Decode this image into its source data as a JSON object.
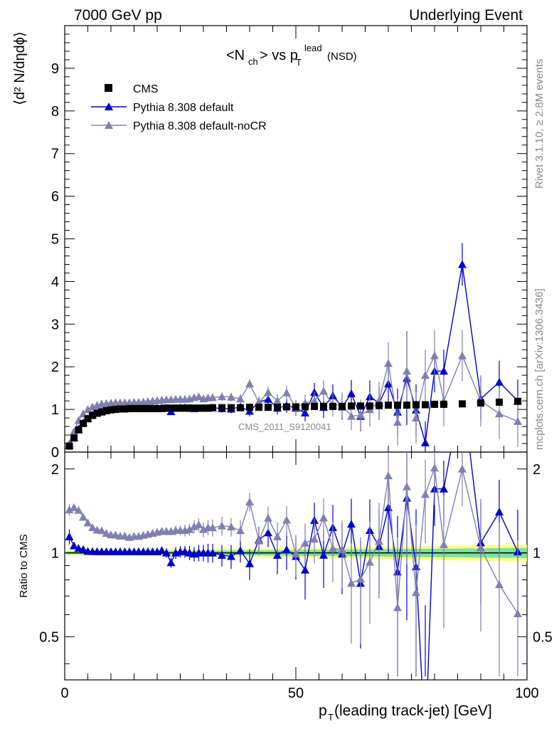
{
  "header": {
    "left": "7000 GeV pp",
    "right": "Underlying Event"
  },
  "plot_title": {
    "main": "<N",
    "sub_ch": "ch",
    "mid": "> vs p",
    "sub_T": "T",
    "sup_lead": "lead",
    "tail": "(NSD)"
  },
  "side_text": {
    "rivet": "Rivet 3.1.10, ≥ 2.8M events",
    "mcplots": "mcplots.cern.ch [arXiv:1306.3436]"
  },
  "watermark": "CMS_2011_S9120041",
  "axes": {
    "y_main_label": "⟨d² N/dηdϕ⟩",
    "y_ratio_label": "Ratio to CMS",
    "x_label_p": "p",
    "x_label_sub": "T",
    "x_label_rest": " (leading track-jet) [GeV]"
  },
  "legend": [
    {
      "label": "CMS",
      "color": "#000000",
      "marker": "square"
    },
    {
      "label": "Pythia 8.308 default",
      "color": "#0000cc",
      "marker": "triangle"
    },
    {
      "label": "Pythia 8.308 default-noCR",
      "color": "#8080b0",
      "marker": "triangle"
    }
  ],
  "chart_data": {
    "type": "scatter",
    "xlim": [
      0,
      100
    ],
    "main_ylim": [
      0,
      10
    ],
    "ratio_ylim": [
      0.35,
      2.3
    ],
    "x_ticks": [
      "0",
      "50",
      "100"
    ],
    "main_y_ticks": [
      "0",
      "1",
      "2",
      "3",
      "4",
      "5",
      "6",
      "7",
      "8",
      "9"
    ],
    "ratio_y_ticks": [
      "0.5",
      "1",
      "2"
    ],
    "x": [
      1,
      2,
      3,
      4,
      5,
      6,
      7,
      8,
      9,
      10,
      11,
      12,
      13,
      14,
      15,
      16,
      17,
      18,
      19,
      20,
      21,
      22,
      23,
      24,
      25,
      26,
      27,
      28,
      29,
      30,
      31,
      32,
      34,
      36,
      38,
      40,
      42,
      44,
      46,
      48,
      50,
      52,
      54,
      56,
      58,
      60,
      62,
      64,
      66,
      68,
      70,
      72,
      74,
      76,
      78,
      80,
      82,
      86,
      90,
      94,
      98
    ],
    "series": [
      {
        "name": "CMS",
        "color": "#000000",
        "values": [
          0.14,
          0.33,
          0.52,
          0.67,
          0.78,
          0.86,
          0.91,
          0.94,
          0.97,
          0.99,
          1.0,
          1.01,
          1.01,
          1.02,
          1.02,
          1.02,
          1.02,
          1.02,
          1.02,
          1.02,
          1.02,
          1.03,
          1.03,
          1.03,
          1.03,
          1.03,
          1.03,
          1.03,
          1.03,
          1.03,
          1.03,
          1.04,
          1.04,
          1.04,
          1.04,
          1.05,
          1.05,
          1.05,
          1.05,
          1.06,
          1.06,
          1.06,
          1.07,
          1.07,
          1.07,
          1.07,
          1.08,
          1.08,
          1.08,
          1.09,
          1.1,
          1.1,
          1.1,
          1.11,
          1.11,
          1.12,
          1.12,
          1.13,
          1.15,
          1.17,
          1.19
        ]
      },
      {
        "name": "Pythia 8.308 default",
        "color": "#0000cc",
        "values": [
          0.16,
          0.35,
          0.54,
          0.69,
          0.79,
          0.87,
          0.92,
          0.95,
          0.98,
          1.0,
          1.01,
          1.02,
          1.02,
          1.03,
          1.03,
          1.03,
          1.03,
          1.03,
          1.03,
          1.03,
          1.04,
          1.03,
          0.95,
          1.03,
          1.04,
          1.04,
          1.03,
          1.02,
          1.03,
          1.03,
          1.03,
          1.04,
          1.02,
          1.01,
          1.06,
          0.96,
          1.17,
          1.24,
          1.03,
          1.09,
          1.03,
          0.92,
          1.4,
          1.05,
          1.32,
          1.06,
          1.37,
          0.84,
          1.3,
          1.15,
          1.6,
          0.94,
          1.73,
          0.99,
          0.22,
          1.9,
          1.9,
          4.4,
          1.25,
          1.64,
          1.2
        ],
        "errors": [
          0.01,
          0.01,
          0.01,
          0.01,
          0.01,
          0.01,
          0.01,
          0.01,
          0.01,
          0.01,
          0.01,
          0.01,
          0.01,
          0.02,
          0.02,
          0.02,
          0.02,
          0.02,
          0.03,
          0.03,
          0.03,
          0.04,
          0.04,
          0.05,
          0.05,
          0.05,
          0.06,
          0.06,
          0.07,
          0.07,
          0.08,
          0.08,
          0.09,
          0.1,
          0.1,
          0.12,
          0.13,
          0.14,
          0.15,
          0.17,
          0.18,
          0.2,
          0.22,
          0.25,
          0.27,
          0.3,
          0.32,
          0.35,
          0.38,
          0.4,
          0.5,
          0.55,
          1.1,
          0.6,
          0.5,
          0.5,
          0.5,
          0.5,
          0.5,
          0.5,
          0.5
        ]
      },
      {
        "name": "Pythia 8.308 default-noCR",
        "color": "#8080b0",
        "values": [
          0.2,
          0.48,
          0.74,
          0.9,
          1.0,
          1.06,
          1.1,
          1.13,
          1.14,
          1.15,
          1.16,
          1.16,
          1.16,
          1.16,
          1.17,
          1.17,
          1.18,
          1.19,
          1.2,
          1.21,
          1.22,
          1.23,
          1.23,
          1.24,
          1.24,
          1.24,
          1.25,
          1.28,
          1.3,
          1.25,
          1.27,
          1.28,
          1.3,
          1.29,
          1.25,
          1.6,
          1.16,
          1.4,
          1.2,
          1.39,
          1.05,
          1.15,
          1.2,
          1.43,
          1.11,
          1.1,
          0.84,
          0.87,
          1.0,
          1.2,
          2.08,
          0.7,
          1.9,
          0.8,
          1.8,
          2.26,
          1.2,
          2.26,
          1.2,
          0.9,
          0.72
        ],
        "errors": [
          0.01,
          0.01,
          0.01,
          0.01,
          0.01,
          0.01,
          0.01,
          0.01,
          0.01,
          0.01,
          0.01,
          0.01,
          0.02,
          0.02,
          0.02,
          0.02,
          0.02,
          0.02,
          0.03,
          0.03,
          0.03,
          0.04,
          0.04,
          0.05,
          0.05,
          0.06,
          0.06,
          0.07,
          0.07,
          0.08,
          0.08,
          0.09,
          0.1,
          0.1,
          0.11,
          0.12,
          0.13,
          0.14,
          0.15,
          0.17,
          0.18,
          0.2,
          0.22,
          0.25,
          0.27,
          0.3,
          0.33,
          0.36,
          0.4,
          0.45,
          0.5,
          0.55,
          0.9,
          0.6,
          0.6,
          0.6,
          0.6,
          0.6,
          0.6,
          0.6,
          0.6
        ]
      }
    ]
  }
}
